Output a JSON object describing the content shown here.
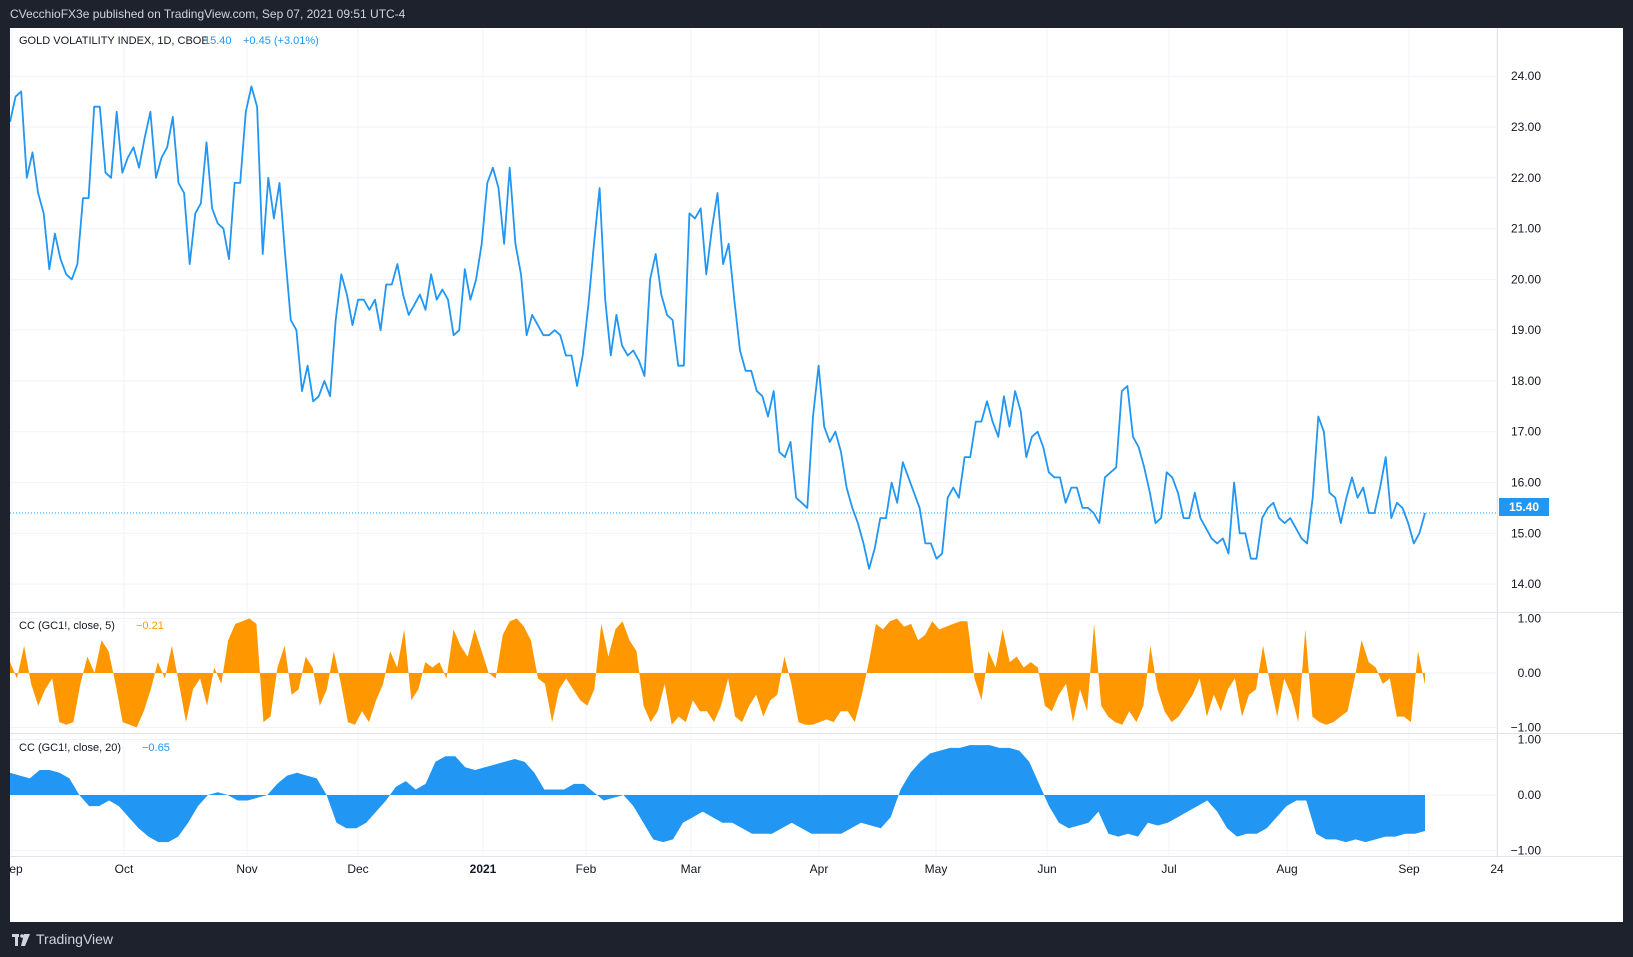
{
  "header": {
    "published_text": "CVecchioFX3e published on TradingView.com, Sep 07, 2021 09:51 UTC-4"
  },
  "footer": {
    "brand": "TradingView",
    "logo_icon": "tradingview-logo-icon"
  },
  "colors": {
    "background_dark": "#1e222d",
    "line_blue": "#2196f3",
    "orange": "#ff9800",
    "grid": "#f0f3fa"
  },
  "chart_data": [
    {
      "type": "line",
      "title": "GOLD VOLATILITY INDEX, 1D, CBOE",
      "last_value_text": "15.40",
      "change_text": "+0.45 (+3.01%)",
      "price_label": "15.40",
      "ylim": [
        13.45,
        24.95
      ],
      "yticks": [
        "24.00",
        "23.00",
        "22.00",
        "21.00",
        "20.00",
        "19.00",
        "18.00",
        "17.00",
        "16.00",
        "15.00",
        "14.00"
      ],
      "ytick_values": [
        24,
        23,
        22,
        21,
        20,
        19,
        18,
        17,
        16,
        15,
        14
      ],
      "x_tick_labels": [
        "Sep",
        "Oct",
        "Nov",
        "Dec",
        "2021",
        "Feb",
        "Mar",
        "Apr",
        "May",
        "Jun",
        "Jul",
        "Aug",
        "Sep",
        "24"
      ],
      "series": [
        {
          "values": [
            23.1,
            23.6,
            23.7,
            22.0,
            22.5,
            21.7,
            21.3,
            20.2,
            20.9,
            20.4,
            20.1,
            20.0,
            20.3,
            21.6,
            21.6,
            23.4,
            23.4,
            22.1,
            22.0,
            23.3,
            22.1,
            22.4,
            22.6,
            22.2,
            22.8,
            23.3,
            22.0,
            22.4,
            22.6,
            23.2,
            21.9,
            21.7,
            20.3,
            21.3,
            21.5,
            22.7,
            21.4,
            21.1,
            21.0,
            20.4,
            21.9,
            21.9,
            23.3,
            23.8,
            23.4,
            20.5,
            22.0,
            21.2,
            21.9,
            20.5,
            19.2,
            19.0,
            17.8,
            18.3,
            17.6,
            17.7,
            18.0,
            17.7,
            19.2,
            20.1,
            19.7,
            19.1,
            19.6,
            19.6,
            19.4,
            19.6,
            19.0,
            19.9,
            19.9,
            20.3,
            19.7,
            19.3,
            19.5,
            19.7,
            19.4,
            20.1,
            19.6,
            19.8,
            19.6,
            18.9,
            19.0,
            20.2,
            19.6,
            20.0,
            20.7,
            21.9,
            22.2,
            21.8,
            20.7,
            22.2,
            20.7,
            20.1,
            18.9,
            19.3,
            19.1,
            18.9,
            18.9,
            19.0,
            18.9,
            18.5,
            18.5,
            17.9,
            18.5,
            19.5,
            20.7,
            21.8,
            19.6,
            18.5,
            19.3,
            18.7,
            18.5,
            18.6,
            18.4,
            18.1,
            20.0,
            20.5,
            19.7,
            19.3,
            19.2,
            18.3,
            18.3,
            21.3,
            21.2,
            21.4,
            20.1,
            21.0,
            21.7,
            20.3,
            20.7,
            19.6,
            18.6,
            18.2,
            18.2,
            17.8,
            17.7,
            17.3,
            17.8,
            16.6,
            16.5,
            16.8,
            15.7,
            15.6,
            15.5,
            17.3,
            18.3,
            17.1,
            16.8,
            17.0,
            16.6,
            15.9,
            15.5,
            15.2,
            14.8,
            14.3,
            14.7,
            15.3,
            15.3,
            16.0,
            15.6,
            16.4,
            16.1,
            15.8,
            15.5,
            14.8,
            14.8,
            14.5,
            14.6,
            15.7,
            15.9,
            15.7,
            16.5,
            16.5,
            17.2,
            17.2,
            17.6,
            17.2,
            16.9,
            17.7,
            17.1,
            17.8,
            17.4,
            16.5,
            16.9,
            17.0,
            16.7,
            16.2,
            16.1,
            16.1,
            15.6,
            15.9,
            15.9,
            15.5,
            15.5,
            15.4,
            15.2,
            16.1,
            16.2,
            16.3,
            17.8,
            17.9,
            16.9,
            16.7,
            16.3,
            15.8,
            15.2,
            15.3,
            16.2,
            16.1,
            15.8,
            15.3,
            15.3,
            15.8,
            15.3,
            15.1,
            14.9,
            14.8,
            14.9,
            14.6,
            16.0,
            15.0,
            15.0,
            14.5,
            14.5,
            15.3,
            15.5,
            15.6,
            15.3,
            15.2,
            15.3,
            15.1,
            14.9,
            14.8,
            15.7,
            17.3,
            17.0,
            15.8,
            15.7,
            15.2,
            15.7,
            16.1,
            15.7,
            15.9,
            15.4,
            15.4,
            15.9,
            16.5,
            15.3,
            15.6,
            15.5,
            15.2,
            14.8,
            15.0,
            15.4
          ]
        }
      ]
    },
    {
      "type": "area",
      "title": "CC (GC1!, close, 5)",
      "last_value_text": "−0.21",
      "ylim": [
        -1.1,
        1.1
      ],
      "yticks": [
        "1.00",
        "0.00",
        "−1.00"
      ],
      "ytick_values": [
        1,
        0,
        -1
      ],
      "series": [
        {
          "values": [
            0.2,
            -0.1,
            0.5,
            -0.2,
            -0.6,
            -0.3,
            -0.1,
            -0.9,
            -0.95,
            -0.9,
            -0.2,
            0.3,
            0.0,
            0.6,
            0.4,
            -0.2,
            -0.9,
            -0.95,
            -1.0,
            -0.7,
            -0.3,
            0.2,
            -0.1,
            0.5,
            -0.2,
            -0.9,
            -0.3,
            -0.1,
            -0.6,
            0.1,
            -0.2,
            0.6,
            0.9,
            0.95,
            1.0,
            0.9,
            -0.9,
            -0.8,
            0.1,
            0.5,
            -0.4,
            -0.3,
            0.3,
            0.1,
            -0.6,
            -0.3,
            0.4,
            -0.2,
            -0.9,
            -0.95,
            -0.7,
            -0.9,
            -0.5,
            -0.2,
            0.4,
            0.1,
            0.8,
            -0.5,
            -0.3,
            0.2,
            0.1,
            0.2,
            -0.1,
            0.8,
            0.5,
            0.3,
            0.8,
            0.4,
            0.0,
            -0.1,
            0.7,
            0.95,
            1.0,
            0.85,
            0.6,
            -0.1,
            -0.2,
            -0.9,
            -0.3,
            -0.1,
            -0.3,
            -0.5,
            -0.6,
            -0.3,
            0.9,
            0.3,
            0.8,
            0.95,
            0.6,
            0.4,
            -0.6,
            -0.9,
            -0.7,
            -0.2,
            -0.95,
            -0.8,
            -0.9,
            -0.5,
            -0.7,
            -0.7,
            -0.9,
            -0.6,
            -0.1,
            -0.8,
            -0.9,
            -0.6,
            -0.4,
            -0.8,
            -0.5,
            -0.4,
            0.3,
            -0.2,
            -0.9,
            -0.95,
            -0.95,
            -0.9,
            -0.85,
            -0.9,
            -0.7,
            -0.7,
            -0.9,
            -0.4,
            0.2,
            0.9,
            0.8,
            0.95,
            1.0,
            0.85,
            0.9,
            0.6,
            0.7,
            0.95,
            0.8,
            0.85,
            0.9,
            0.95,
            0.95,
            -0.1,
            -0.5,
            0.4,
            0.1,
            0.8,
            0.2,
            0.3,
            0.1,
            0.2,
            0.1,
            -0.6,
            -0.7,
            -0.4,
            -0.2,
            -0.9,
            -0.3,
            -0.7,
            0.9,
            -0.6,
            -0.8,
            -0.9,
            -0.95,
            -0.7,
            -0.9,
            -0.6,
            0.5,
            -0.3,
            -0.7,
            -0.9,
            -0.8,
            -0.6,
            -0.4,
            -0.1,
            -0.8,
            -0.4,
            -0.7,
            -0.3,
            -0.1,
            -0.8,
            -0.4,
            -0.3,
            0.5,
            -0.2,
            -0.8,
            -0.1,
            -0.4,
            -0.9,
            0.8,
            -0.8,
            -0.9,
            -0.95,
            -0.9,
            -0.8,
            -0.7,
            -0.1,
            0.6,
            0.2,
            0.1,
            -0.2,
            -0.1,
            -0.8,
            -0.8,
            -0.9,
            0.4,
            -0.21
          ]
        }
      ]
    },
    {
      "type": "area",
      "title": "CC (GC1!, close, 20)",
      "last_value_text": "−0.65",
      "ylim": [
        -1.1,
        1.1
      ],
      "yticks": [
        "1.00",
        "0.00",
        "−1.00"
      ],
      "ytick_values": [
        1,
        0,
        -1
      ],
      "series": [
        {
          "values": [
            0.4,
            0.35,
            0.3,
            0.45,
            0.45,
            0.4,
            0.3,
            0.0,
            -0.2,
            -0.2,
            -0.1,
            -0.2,
            -0.4,
            -0.6,
            -0.75,
            -0.85,
            -0.85,
            -0.75,
            -0.5,
            -0.2,
            0.0,
            0.05,
            0.0,
            -0.1,
            -0.1,
            -0.05,
            0.0,
            0.2,
            0.35,
            0.4,
            0.35,
            0.3,
            0.0,
            -0.5,
            -0.6,
            -0.6,
            -0.5,
            -0.3,
            -0.1,
            0.15,
            0.25,
            0.1,
            0.2,
            0.6,
            0.7,
            0.7,
            0.5,
            0.45,
            0.5,
            0.55,
            0.6,
            0.65,
            0.6,
            0.4,
            0.1,
            0.1,
            0.1,
            0.2,
            0.2,
            0.05,
            -0.1,
            -0.05,
            0.0,
            -0.2,
            -0.5,
            -0.8,
            -0.85,
            -0.8,
            -0.5,
            -0.4,
            -0.3,
            -0.4,
            -0.5,
            -0.5,
            -0.6,
            -0.7,
            -0.7,
            -0.7,
            -0.6,
            -0.5,
            -0.6,
            -0.7,
            -0.7,
            -0.7,
            -0.7,
            -0.6,
            -0.5,
            -0.55,
            -0.6,
            -0.4,
            0.1,
            0.4,
            0.6,
            0.75,
            0.8,
            0.85,
            0.85,
            0.9,
            0.9,
            0.9,
            0.85,
            0.85,
            0.8,
            0.6,
            0.2,
            -0.2,
            -0.5,
            -0.6,
            -0.55,
            -0.5,
            -0.3,
            -0.7,
            -0.75,
            -0.7,
            -0.75,
            -0.5,
            -0.55,
            -0.5,
            -0.4,
            -0.3,
            -0.2,
            -0.1,
            -0.3,
            -0.6,
            -0.75,
            -0.7,
            -0.7,
            -0.6,
            -0.4,
            -0.2,
            -0.1,
            -0.1,
            -0.7,
            -0.8,
            -0.8,
            -0.85,
            -0.8,
            -0.85,
            -0.8,
            -0.75,
            -0.75,
            -0.7,
            -0.7,
            -0.65
          ]
        }
      ]
    }
  ]
}
